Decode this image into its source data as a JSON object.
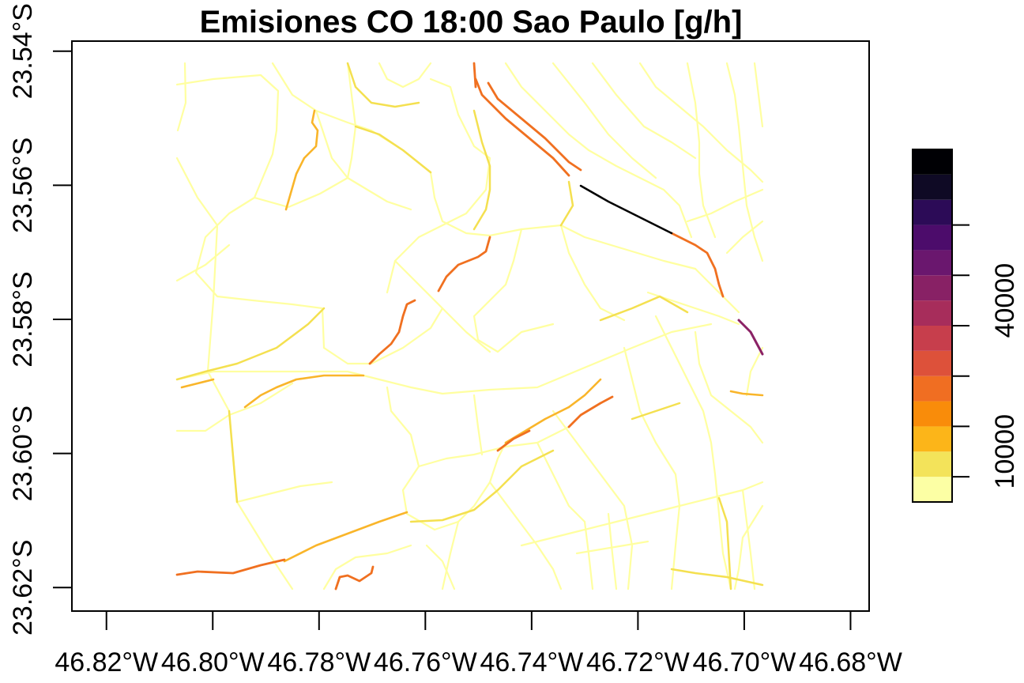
{
  "map": {
    "title": "Emisiones CO 18:00 Sao Paulo [g/h]",
    "x_ticks": [
      "46.82°W",
      "46.80°W",
      "46.78°W",
      "46.76°W",
      "46.74°W",
      "46.72°W",
      "46.70°W",
      "46.68°W"
    ],
    "x_tick_values": [
      -46.82,
      -46.8,
      -46.78,
      -46.76,
      -46.74,
      -46.72,
      -46.7,
      -46.68
    ],
    "y_ticks": [
      "23.54°S",
      "23.56°S",
      "23.58°S",
      "23.60°S",
      "23.62°S"
    ],
    "y_tick_values": [
      -23.54,
      -23.56,
      -23.58,
      -23.6,
      -23.62
    ],
    "xlim": [
      -46.8265,
      -46.6765
    ],
    "ylim": [
      -23.6235,
      -23.5385
    ],
    "legend": {
      "labels": [
        "10000",
        "40000"
      ],
      "label_values": [
        10000,
        40000
      ],
      "range": [
        0,
        70000
      ],
      "colors": [
        "#FCFFA4",
        "#F3E35A",
        "#FCB519",
        "#F98C0A",
        "#F06E22",
        "#DD513A",
        "#C73E4C",
        "#A72D5B",
        "#882165",
        "#6A176E",
        "#4C0C6B",
        "#2C0B57",
        "#0F0A25",
        "#000004"
      ],
      "tick_values": [
        5000,
        15000,
        25000,
        35000,
        45000,
        55000
      ]
    },
    "road_colors": {
      "low": "#FFFFA0",
      "low_mid": "#F4E050",
      "mid": "#F9B52A",
      "high": "#F07020",
      "very_high": "#8B2266",
      "max": "#000000"
    }
  }
}
